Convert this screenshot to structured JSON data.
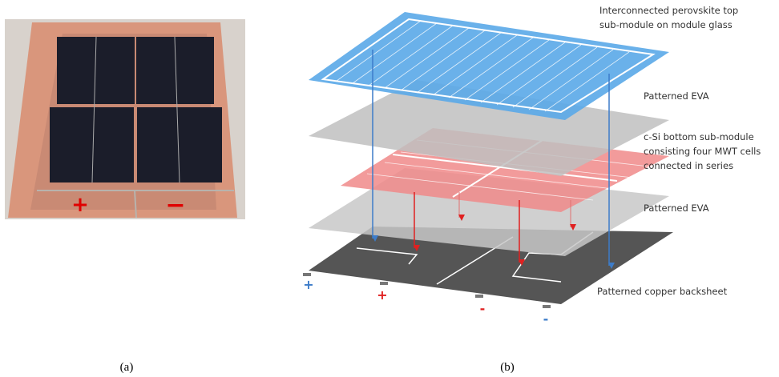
{
  "panel_a": {
    "caption": "(a)",
    "signs": [
      "+",
      "−"
    ]
  },
  "panel_b": {
    "caption": "(b)",
    "layers": [
      {
        "label_lines": [
          "Interconnected perovskite top",
          "sub-module on module glass"
        ]
      },
      {
        "label_lines": [
          "Patterned EVA"
        ]
      },
      {
        "label_lines": [
          "c-Si bottom sub-module",
          "consisting  four MWT cells",
          "connected in series"
        ]
      },
      {
        "label_lines": [
          "Patterned EVA"
        ]
      },
      {
        "label_lines": [
          "Patterned copper backsheet"
        ]
      }
    ],
    "terminals": [
      "+",
      "+",
      "-",
      "-"
    ]
  }
}
